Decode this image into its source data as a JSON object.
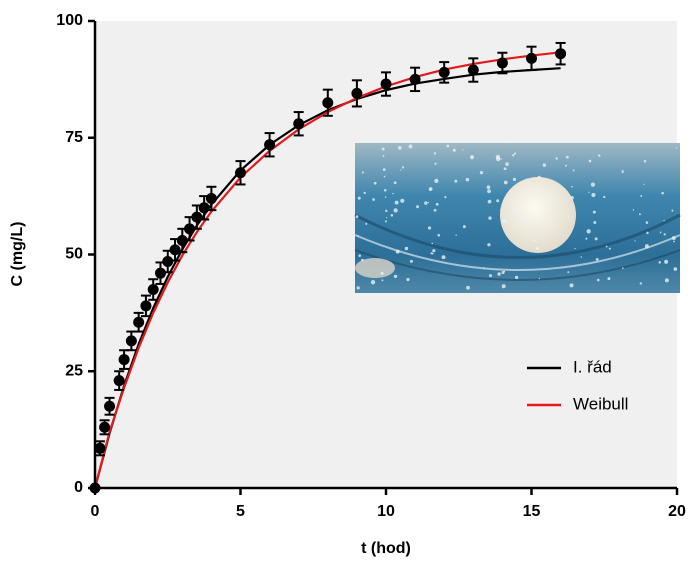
{
  "chart_data": {
    "type": "line",
    "x_label": "t (hod)",
    "y_label": "C (mg/L)",
    "xlim": [
      0,
      20
    ],
    "xticks": [
      0,
      5,
      10,
      15,
      20
    ],
    "ylim": [
      0,
      100
    ],
    "yticks": [
      0,
      25,
      50,
      75,
      100
    ],
    "points": {
      "color": "#000000",
      "x": [
        0,
        0.17,
        0.33,
        0.5,
        0.83,
        1,
        1.25,
        1.5,
        1.75,
        2,
        2.25,
        2.5,
        2.75,
        3,
        3.25,
        3.5,
        3.75,
        4,
        5,
        6,
        7,
        8,
        9,
        10,
        11,
        12,
        13,
        14,
        15,
        16
      ],
      "values": [
        0,
        8.5,
        13,
        17.5,
        23,
        27.5,
        31.5,
        35.5,
        39,
        42.5,
        46,
        48.5,
        51,
        53,
        55.5,
        58,
        60,
        62,
        67.5,
        73.5,
        78,
        82.5,
        84.5,
        86.5,
        87.5,
        89,
        89.5,
        91,
        92,
        93
      ],
      "errors": [
        0,
        1.5,
        1.5,
        1.8,
        2,
        2,
        2,
        2,
        2.2,
        2.2,
        2.3,
        2.3,
        2.3,
        2.5,
        2.5,
        2.5,
        2.5,
        2.5,
        2.5,
        2.5,
        2.5,
        2.8,
        2.8,
        2.5,
        2.5,
        2.2,
        2.5,
        2.2,
        2.5,
        2.3
      ]
    },
    "series": [
      {
        "name": "I. řád",
        "color": "#000000",
        "x": [
          0,
          0.5,
          1,
          1.5,
          2,
          2.5,
          3,
          3.5,
          4,
          5,
          6,
          7,
          8,
          9,
          10,
          11,
          12,
          13,
          14,
          15,
          16
        ],
        "values": [
          0,
          11.7,
          21.9,
          30.8,
          38.5,
          45.2,
          51.1,
          56.2,
          60.7,
          68.0,
          73.5,
          77.7,
          80.9,
          83.3,
          85.2,
          86.6,
          87.6,
          88.5,
          89.1,
          89.5,
          89.9
        ]
      },
      {
        "name": "Weibull",
        "color": "#e31a1c",
        "x": [
          0,
          0.5,
          1,
          1.5,
          2,
          2.5,
          3,
          3.5,
          4,
          5,
          6,
          7,
          8,
          9,
          10,
          11,
          12,
          13,
          14,
          15,
          16
        ],
        "values": [
          0,
          12,
          21.5,
          30,
          37.5,
          44,
          49.8,
          54.8,
          59.2,
          66.5,
          72.2,
          76.8,
          80.5,
          83.5,
          86,
          88,
          89.6,
          90.8,
          91.8,
          92.6,
          93.3
        ]
      }
    ]
  }
}
